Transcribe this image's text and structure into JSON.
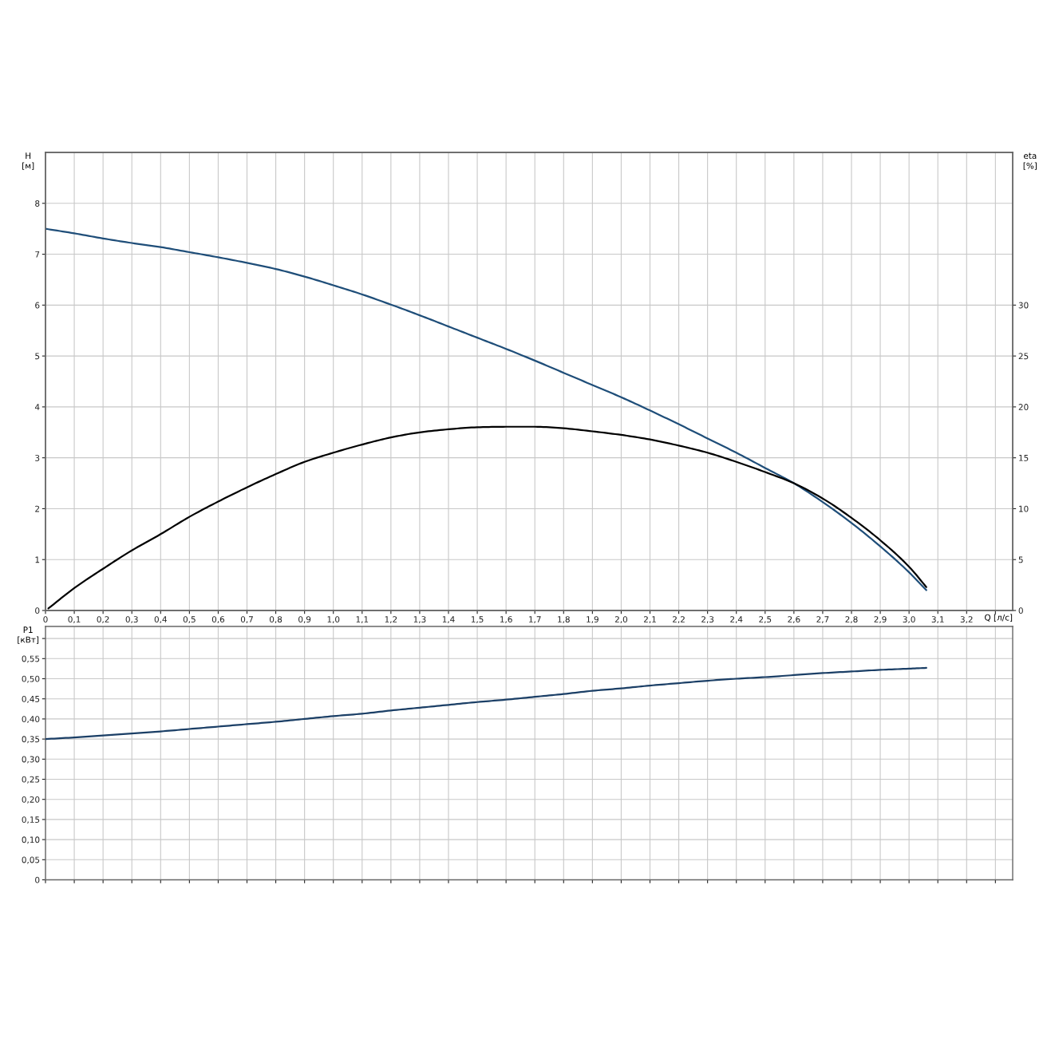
{
  "chart_data": [
    {
      "type": "line",
      "ylabel": "H [м]",
      "y2label": "eta [%]",
      "xlabel": "Q [л/с]",
      "xlim": [
        0,
        3.36
      ],
      "xticks": [
        0,
        {
          "value": 0.1,
          "label": "0,1"
        },
        {
          "value": 0.2,
          "label": "0,2"
        },
        {
          "value": 0.3,
          "label": "0,3"
        },
        {
          "value": 0.4,
          "label": "0,4"
        },
        {
          "value": 0.5,
          "label": "0,5"
        },
        {
          "value": 0.6,
          "label": "0,6"
        },
        {
          "value": 0.7,
          "label": "0,7"
        },
        {
          "value": 0.8,
          "label": "0,8"
        },
        {
          "value": 0.9,
          "label": "0,9"
        },
        {
          "value": 1.0,
          "label": "1,0"
        },
        {
          "value": 1.1,
          "label": "1,1"
        },
        {
          "value": 1.2,
          "label": "1,2"
        },
        {
          "value": 1.3,
          "label": "1,3"
        },
        {
          "value": 1.4,
          "label": "1,4"
        },
        {
          "value": 1.5,
          "label": "1,5"
        },
        {
          "value": 1.6,
          "label": "1,6"
        },
        {
          "value": 1.7,
          "label": "1,7"
        },
        {
          "value": 1.8,
          "label": "1,8"
        },
        {
          "value": 1.9,
          "label": "1,9"
        },
        {
          "value": 2.0,
          "label": "2,0"
        },
        {
          "value": 2.1,
          "label": "2,1"
        },
        {
          "value": 2.2,
          "label": "2,2"
        },
        {
          "value": 2.3,
          "label": "2,3"
        },
        {
          "value": 2.4,
          "label": "2,4"
        },
        {
          "value": 2.5,
          "label": "2,5"
        },
        {
          "value": 2.6,
          "label": "2,6"
        },
        {
          "value": 2.7,
          "label": "2,7"
        },
        {
          "value": 2.8,
          "label": "2,8"
        },
        {
          "value": 2.9,
          "label": "2,9"
        },
        {
          "value": 3.0,
          "label": "3,0"
        },
        {
          "value": 3.1,
          "label": "3,1"
        },
        {
          "value": 3.2,
          "label": "3,2"
        },
        {
          "value": 3.3,
          "label": null
        }
      ],
      "ylim": [
        0,
        9
      ],
      "yticks": [
        0,
        1,
        2,
        3,
        4,
        5,
        6,
        7,
        8
      ],
      "y2lim": [
        0,
        45
      ],
      "y2ticks": [
        0,
        5,
        10,
        15,
        20,
        25,
        30
      ],
      "grid": true,
      "series": [
        {
          "color": "#1f4e79",
          "x": [
            0,
            0.1,
            0.2,
            0.3,
            0.4,
            0.5,
            0.6,
            0.7,
            0.8,
            0.9,
            1.0,
            1.1,
            1.2,
            1.3,
            1.4,
            1.5,
            1.6,
            1.7,
            1.8,
            1.9,
            2.0,
            2.1,
            2.2,
            2.3,
            2.4,
            2.5,
            2.6,
            2.7,
            2.8,
            2.9,
            3.0,
            3.06
          ],
          "values": [
            7.5,
            7.41,
            7.31,
            7.22,
            7.14,
            7.04,
            6.94,
            6.83,
            6.71,
            6.56,
            6.39,
            6.21,
            6.01,
            5.8,
            5.58,
            5.36,
            5.14,
            4.91,
            4.67,
            4.43,
            4.19,
            3.93,
            3.66,
            3.38,
            3.1,
            2.8,
            2.5,
            2.13,
            1.72,
            1.26,
            0.75,
            0.4
          ]
        },
        {
          "color": "#000000",
          "axis": "y2",
          "x": [
            0.01,
            0.1,
            0.2,
            0.3,
            0.4,
            0.5,
            0.6,
            0.7,
            0.8,
            0.9,
            1.0,
            1.1,
            1.2,
            1.3,
            1.4,
            1.5,
            1.6,
            1.7,
            1.8,
            1.9,
            2.0,
            2.1,
            2.2,
            2.3,
            2.4,
            2.5,
            2.6,
            2.7,
            2.8,
            2.9,
            3.0,
            3.06
          ],
          "values": [
            0.2,
            2.2,
            4.1,
            5.9,
            7.5,
            9.2,
            10.7,
            12.1,
            13.4,
            14.6,
            15.5,
            16.3,
            17.0,
            17.5,
            17.8,
            18.0,
            18.05,
            18.05,
            17.9,
            17.6,
            17.25,
            16.8,
            16.2,
            15.5,
            14.6,
            13.6,
            12.5,
            11.0,
            9.1,
            6.9,
            4.3,
            2.3
          ]
        }
      ]
    },
    {
      "type": "line",
      "ylabel": "P1 [кВт]",
      "xlim": [
        0,
        3.36
      ],
      "xticks": [
        0,
        0.1,
        0.2,
        0.3,
        0.4,
        0.5,
        0.6,
        0.7,
        0.8,
        0.9,
        1.0,
        1.1,
        1.2,
        1.3,
        1.4,
        1.5,
        1.6,
        1.7,
        1.8,
        1.9,
        2.0,
        2.1,
        2.2,
        2.3,
        2.4,
        2.5,
        2.6,
        2.7,
        2.8,
        2.9,
        3.0,
        3.1,
        3.2,
        3.3
      ],
      "ylim": [
        0,
        0.63
      ],
      "yticks": [
        0,
        {
          "value": 0.05,
          "label": "0,05"
        },
        {
          "value": 0.1,
          "label": "0,10"
        },
        {
          "value": 0.15,
          "label": "0,15"
        },
        {
          "value": 0.2,
          "label": "0,20"
        },
        {
          "value": 0.25,
          "label": "0,25"
        },
        {
          "value": 0.3,
          "label": "0,30"
        },
        {
          "value": 0.35,
          "label": "0,35"
        },
        {
          "value": 0.4,
          "label": "0,40"
        },
        {
          "value": 0.45,
          "label": "0,45"
        },
        {
          "value": 0.5,
          "label": "0,50"
        },
        {
          "value": 0.55,
          "label": "0,55"
        },
        {
          "value": 0.6,
          "label": null
        }
      ],
      "grid": true,
      "tick_labels": "y",
      "series": [
        {
          "color": "#1b3f66",
          "x": [
            0,
            0.1,
            0.2,
            0.3,
            0.4,
            0.5,
            0.6,
            0.7,
            0.8,
            0.9,
            1.0,
            1.1,
            1.2,
            1.3,
            1.4,
            1.5,
            1.6,
            1.7,
            1.8,
            1.9,
            2.0,
            2.1,
            2.2,
            2.3,
            2.4,
            2.5,
            2.6,
            2.7,
            2.8,
            2.9,
            3.0,
            3.06
          ],
          "values": [
            0.35,
            0.354,
            0.359,
            0.364,
            0.369,
            0.375,
            0.381,
            0.387,
            0.393,
            0.4,
            0.407,
            0.413,
            0.421,
            0.428,
            0.435,
            0.442,
            0.448,
            0.455,
            0.462,
            0.47,
            0.476,
            0.483,
            0.489,
            0.495,
            0.5,
            0.504,
            0.509,
            0.514,
            0.518,
            0.522,
            0.525,
            0.527
          ]
        }
      ]
    }
  ]
}
